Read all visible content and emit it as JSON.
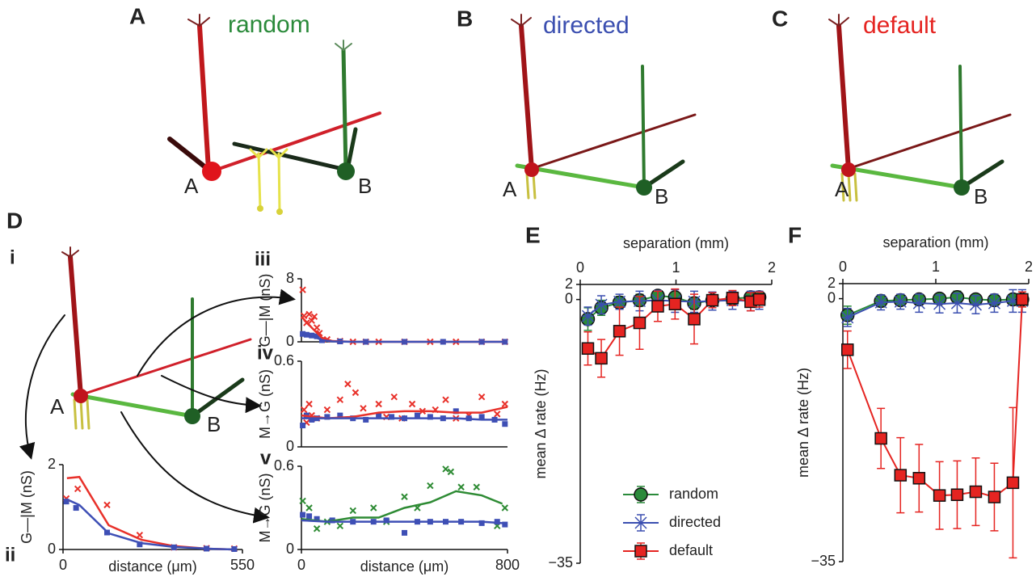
{
  "figure": {
    "panel_labels": [
      "A",
      "B",
      "C",
      "D",
      "E",
      "F"
    ],
    "subpanel_labels": [
      "i",
      "ii",
      "iii",
      "iv",
      "v"
    ],
    "conditions": [
      "random",
      "directed",
      "default"
    ],
    "neuron_labels": [
      "A",
      "B"
    ]
  },
  "chart_data": [
    {
      "type": "line",
      "ylabel": "G—|M (nS)",
      "xlabel": "distance (μm)",
      "xlim": [
        0,
        550
      ],
      "ylim": [
        0,
        2
      ],
      "xticks": [
        0,
        550
      ],
      "yticks": [
        0,
        2
      ],
      "series": [
        {
          "style": "line",
          "color": "#e8312a",
          "x": [
            12,
            50,
            140,
            240,
            340,
            440,
            525
          ],
          "values": [
            1.68,
            1.71,
            0.57,
            0.23,
            0.08,
            0.02,
            0
          ]
        },
        {
          "style": "line",
          "color": "#3e4fb5",
          "x": [
            12,
            50,
            140,
            240,
            340,
            440,
            525
          ],
          "values": [
            1.18,
            1.05,
            0.38,
            0.15,
            0.06,
            0.02,
            0
          ]
        },
        {
          "style": "cross",
          "color": "#e8312a",
          "x": [
            10,
            45,
            135,
            235,
            340,
            440,
            525
          ],
          "values": [
            1.2,
            1.43,
            1.05,
            0.34,
            0.05,
            0.03,
            0.02
          ]
        },
        {
          "style": "square",
          "color": "#3e4fb5",
          "x": [
            10,
            40,
            135,
            235,
            340,
            440,
            525
          ],
          "values": [
            1.13,
            0.98,
            0.4,
            0.12,
            0.05,
            0.02,
            0.01
          ]
        }
      ]
    },
    {
      "type": "line",
      "ylabel": "G—|M (nS)",
      "xlim": [
        0,
        800
      ],
      "ylim": [
        0,
        8
      ],
      "yticks": [
        0,
        8
      ],
      "series": [
        {
          "style": "cross",
          "color": "#e8312a",
          "x": [
            5,
            10,
            20,
            30,
            40,
            50,
            60,
            70,
            100,
            150,
            200,
            250,
            300,
            400,
            500,
            600,
            700,
            790
          ],
          "values": [
            6.6,
            3.3,
            2.4,
            3.5,
            2.7,
            3.2,
            1.8,
            1.1,
            0.3,
            0.1,
            0,
            0,
            0,
            0,
            0,
            0,
            0,
            0
          ]
        },
        {
          "style": "square",
          "color": "#3e4fb5",
          "x": [
            5,
            20,
            40,
            60,
            80,
            150,
            250,
            400,
            550,
            700,
            790
          ],
          "values": [
            1.0,
            0.9,
            0.8,
            0.7,
            0.2,
            0.05,
            0,
            0,
            0,
            0,
            0
          ]
        },
        {
          "style": "line",
          "color": "#e8312a",
          "x": [
            0,
            40,
            80,
            120,
            200,
            400,
            600,
            800
          ],
          "values": [
            3.2,
            1.8,
            0.5,
            0.1,
            0,
            0,
            0,
            0
          ]
        },
        {
          "style": "line",
          "color": "#3e4fb5",
          "x": [
            0,
            40,
            80,
            120,
            200,
            400,
            600,
            800
          ],
          "values": [
            1.0,
            0.8,
            0.2,
            0.05,
            0,
            0,
            0,
            0
          ]
        }
      ]
    },
    {
      "type": "line",
      "ylabel": "M→G (nS)",
      "xlim": [
        0,
        800
      ],
      "ylim": [
        0,
        0.6
      ],
      "yticks": [
        0,
        0.6
      ],
      "series": [
        {
          "style": "cross",
          "color": "#e8312a",
          "x": [
            10,
            20,
            30,
            40,
            60,
            100,
            150,
            180,
            210,
            240,
            300,
            330,
            360,
            390,
            430,
            470,
            520,
            560,
            600,
            650,
            700,
            760,
            790
          ],
          "values": [
            0.26,
            0.17,
            0.3,
            0.22,
            0.2,
            0.26,
            0.33,
            0.44,
            0.38,
            0.27,
            0.3,
            0.21,
            0.35,
            0.2,
            0.3,
            0.25,
            0.26,
            0.33,
            0.2,
            0.22,
            0.35,
            0.23,
            0.3
          ]
        },
        {
          "style": "square",
          "color": "#3e4fb5",
          "x": [
            5,
            20,
            40,
            60,
            100,
            150,
            200,
            250,
            300,
            350,
            400,
            450,
            500,
            550,
            600,
            650,
            700,
            750,
            790
          ],
          "values": [
            0.15,
            0.22,
            0.19,
            0.2,
            0.21,
            0.22,
            0.2,
            0.19,
            0.22,
            0.21,
            0.2,
            0.22,
            0.21,
            0.2,
            0.25,
            0.2,
            0.21,
            0.19,
            0.16
          ]
        },
        {
          "style": "line",
          "color": "#e8312a",
          "x": [
            0,
            100,
            200,
            300,
            400,
            500,
            600,
            700,
            800
          ],
          "values": [
            0.22,
            0.2,
            0.21,
            0.24,
            0.25,
            0.25,
            0.24,
            0.24,
            0.28
          ]
        },
        {
          "style": "line",
          "color": "#3e4fb5",
          "x": [
            0,
            100,
            200,
            300,
            400,
            500,
            600,
            700,
            800
          ],
          "values": [
            0.2,
            0.2,
            0.2,
            0.2,
            0.2,
            0.2,
            0.2,
            0.19,
            0.19
          ]
        }
      ]
    },
    {
      "type": "line",
      "ylabel": "M→G (nS)",
      "xlabel": "distance (μm)",
      "xlim": [
        0,
        800
      ],
      "ylim": [
        0,
        0.6
      ],
      "xticks": [
        0,
        800
      ],
      "yticks": [
        0,
        0.6
      ],
      "series": [
        {
          "style": "cross",
          "color": "#2e8b34",
          "x": [
            5,
            30,
            60,
            100,
            150,
            200,
            280,
            330,
            400,
            450,
            500,
            560,
            580,
            620,
            680,
            760,
            790
          ],
          "values": [
            0.35,
            0.3,
            0.15,
            0.2,
            0.17,
            0.28,
            0.3,
            0.2,
            0.38,
            0.3,
            0.46,
            0.58,
            0.56,
            0.45,
            0.45,
            0.17,
            0.3
          ]
        },
        {
          "style": "square",
          "color": "#3e4fb5",
          "x": [
            5,
            30,
            60,
            120,
            200,
            280,
            330,
            400,
            450,
            500,
            560,
            620,
            700,
            760,
            790
          ],
          "values": [
            0.25,
            0.24,
            0.22,
            0.21,
            0.2,
            0.2,
            0.21,
            0.12,
            0.2,
            0.2,
            0.2,
            0.2,
            0.19,
            0.2,
            0.18
          ]
        },
        {
          "style": "line",
          "color": "#2e8b34",
          "x": [
            0,
            100,
            200,
            300,
            400,
            500,
            600,
            700,
            780
          ],
          "values": [
            0.22,
            0.2,
            0.23,
            0.23,
            0.3,
            0.34,
            0.42,
            0.39,
            0.33
          ]
        },
        {
          "style": "line",
          "color": "#3e4fb5",
          "x": [
            0,
            100,
            200,
            300,
            400,
            500,
            600,
            700,
            780
          ],
          "values": [
            0.21,
            0.2,
            0.2,
            0.2,
            0.2,
            0.2,
            0.2,
            0.2,
            0.19
          ]
        }
      ]
    },
    {
      "type": "errorbar",
      "xlabel": "separation (mm)",
      "ylabel": "mean Δ rate (Hz)",
      "xaxis": "top",
      "legend": "lower center",
      "xlim": [
        0,
        2
      ],
      "ylim": [
        -35,
        2
      ],
      "xticks": [
        0,
        1,
        2
      ],
      "yticks": [
        2,
        0,
        {
          "value": -35,
          "label": "−35"
        }
      ],
      "x": [
        0.08,
        0.22,
        0.41,
        0.62,
        0.81,
        0.99,
        1.19,
        1.38,
        1.59,
        1.78,
        1.87
      ],
      "series": [
        {
          "name": "random",
          "marker": "circle",
          "color": "#2a8a3a",
          "values": [
            -2.6,
            -1.1,
            -0.4,
            -0.1,
            0.5,
            0.3,
            -0.5,
            -0.1,
            0.1,
            0.3,
            0.3
          ],
          "errors": [
            1.5,
            1,
            0.8,
            0.8,
            0.6,
            0.6,
            0.8,
            0.5,
            0.5,
            0.5,
            0.5
          ]
        },
        {
          "name": "directed",
          "marker": "star",
          "color": "#3b4fb0",
          "values": [
            -2.2,
            -0.7,
            -0.3,
            -0.2,
            -0.1,
            -0.2,
            -0.3,
            -0.2,
            -0.1,
            -0.2,
            -0.1
          ],
          "errors": [
            1.2,
            1.2,
            1,
            1.3,
            1.3,
            1.5,
            1.4,
            1.2,
            1.2,
            1.3,
            1.2
          ]
        },
        {
          "name": "default",
          "marker": "square",
          "color": "#e52421",
          "values": [
            -6.5,
            -7.8,
            -4.2,
            -3.1,
            -0.9,
            -0.6,
            -2.6,
            -0.1,
            0.2,
            -0.3,
            0
          ],
          "errors": [
            2.2,
            2.5,
            3.2,
            3.5,
            2,
            2,
            3.3,
            1,
            1,
            1.2,
            1
          ]
        }
      ]
    },
    {
      "type": "errorbar",
      "xlabel": "separation (mm)",
      "ylabel": "mean Δ rate (Hz)",
      "xaxis": "top",
      "xlim": [
        0,
        2
      ],
      "ylim": [
        -35,
        2
      ],
      "xticks": [
        0,
        1,
        2
      ],
      "yticks": [
        2,
        0,
        {
          "value": -35,
          "label": "−35"
        }
      ],
      "x": [
        0.05,
        0.41,
        0.62,
        0.82,
        1.04,
        1.23,
        1.43,
        1.63,
        1.83,
        1.93
      ],
      "series": [
        {
          "marker": "circle",
          "color": "#2a8a3a",
          "values": [
            -2.2,
            -0.3,
            -0.2,
            -0.1,
            0,
            0.2,
            -0.1,
            -0.2,
            -0.1,
            -0.1
          ],
          "errors": [
            1.2,
            0.8,
            0.6,
            0.6,
            0.6,
            0.8,
            0.6,
            0.6,
            0.6,
            0.6
          ]
        },
        {
          "marker": "star",
          "color": "#3b4fb0",
          "values": [
            -2.5,
            -0.5,
            -0.4,
            -0.6,
            -0.7,
            -0.6,
            -0.8,
            -0.6,
            -0.3,
            -0.3
          ],
          "errors": [
            1.2,
            1,
            1,
            1.2,
            1.2,
            1.3,
            1.2,
            1.2,
            1.5,
            1.5
          ]
        },
        {
          "marker": "square",
          "color": "#e52421",
          "values": [
            -6.8,
            -18.6,
            -23.5,
            -23.9,
            -26.2,
            -26.1,
            -25.7,
            -26.4,
            -24.5,
            -0.1
          ],
          "errors": [
            2.5,
            4,
            5,
            4.5,
            4.5,
            4.5,
            4.5,
            4.5,
            10,
            1
          ]
        }
      ]
    }
  ]
}
